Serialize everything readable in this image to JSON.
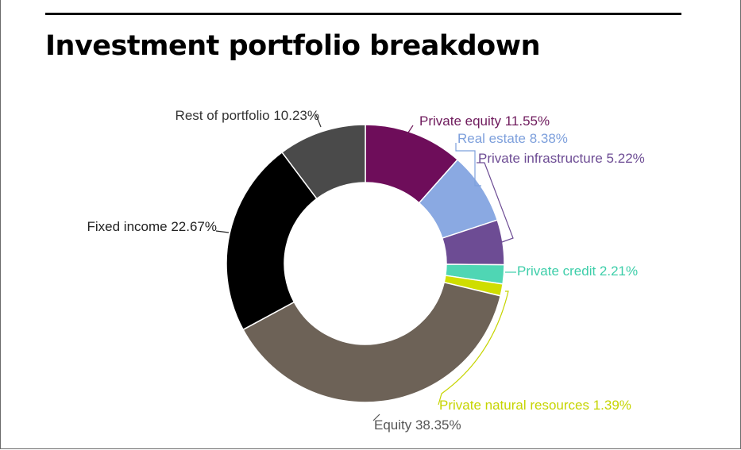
{
  "title": "Investment portfolio breakdown",
  "chart_data": {
    "type": "pie",
    "donut": true,
    "title": "Investment portfolio breakdown",
    "slices": [
      {
        "name": "Private equity",
        "value": 11.55,
        "label": "Private equity 11.55%",
        "color": "#6e0d5a",
        "label_color": "#6e1a5c"
      },
      {
        "name": "Real estate",
        "value": 8.38,
        "label": "Real estate 8.38%",
        "color": "#8aa9e2",
        "label_color": "#7ea0dc"
      },
      {
        "name": "Private infrastructure",
        "value": 5.22,
        "label": "Private infrastructure 5.22%",
        "color": "#6d4c94",
        "label_color": "#6d4c94"
      },
      {
        "name": "Private credit",
        "value": 2.21,
        "label": "Private credit 2.21%",
        "color": "#4fd6b4",
        "label_color": "#3dcea9"
      },
      {
        "name": "Private natural resources",
        "value": 1.39,
        "label": "Private natural resources 1.39%",
        "color": "#cfdd00",
        "label_color": "#c6d400"
      },
      {
        "name": "Equity",
        "value": 38.35,
        "label": "Equity 38.35%",
        "color": "#6d6257",
        "label_color": "#555555"
      },
      {
        "name": "Fixed income",
        "value": 22.67,
        "label": "Fixed income 22.67%",
        "color": "#000000",
        "label_color": "#222222"
      },
      {
        "name": "Rest of portfolio",
        "value": 10.23,
        "label": "Rest of portfolio 10.23%",
        "color": "#4a4a4a",
        "label_color": "#333333"
      }
    ]
  }
}
